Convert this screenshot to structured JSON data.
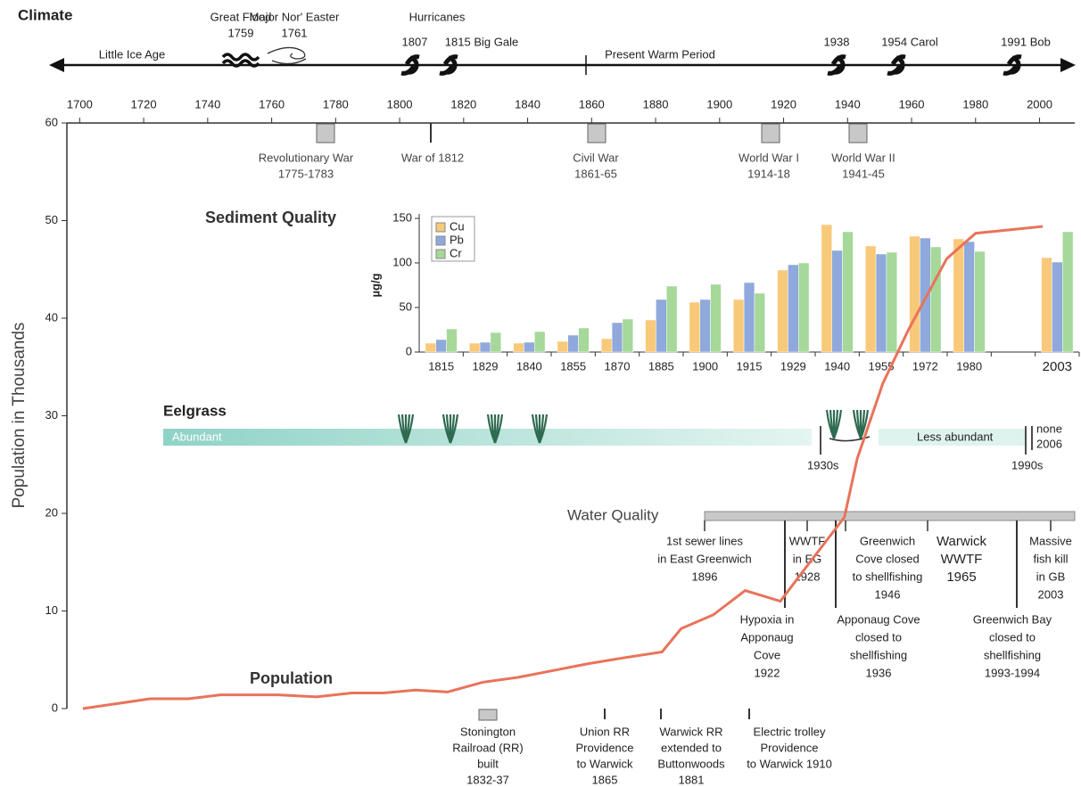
{
  "climate": {
    "title": "Climate",
    "periods": [
      "Little Ice Age",
      "Present Warm Period"
    ],
    "header": "Hurricanes",
    "events": [
      [
        "Great Flood",
        "1759"
      ],
      [
        "Major Nor' Easter",
        "1761"
      ],
      [
        "1807"
      ],
      [
        "1815 Big Gale"
      ],
      [
        "1938"
      ],
      [
        "1954 Carol"
      ],
      [
        "1991 Bob"
      ]
    ]
  },
  "history_top": [
    [
      "Revolutionary War",
      "1775-1783"
    ],
    [
      "War of 1812"
    ],
    [
      "Civil War",
      "1861-65"
    ],
    [
      "World War I",
      "1914-18"
    ],
    [
      "World War II",
      "1941-45"
    ]
  ],
  "history_bottom": [
    [
      "Stonington",
      "Railroad (RR)",
      "built",
      "1832-37"
    ],
    [
      "Union RR",
      "Providence",
      "to Warwick",
      "1865"
    ],
    [
      "Warwick RR",
      "extended to",
      "Buttonwoods",
      "1881"
    ],
    [
      "Electric trolley",
      "Providence",
      "to Warwick 1910"
    ]
  ],
  "eelgrass": {
    "title": "Eelgrass",
    "start": "Abundant",
    "end": "Less abundant",
    "marks": [
      "1930s",
      "1990s"
    ],
    "none": [
      "none",
      "2006"
    ]
  },
  "water_quality": {
    "title": "Water Quality",
    "above": [
      [
        "1st sewer lines",
        "in East Greenwich",
        "1896"
      ],
      [
        "WWTF",
        "in EG",
        "1928"
      ],
      [
        "Greenwich",
        "Cove closed",
        "to shellfishing",
        "1946"
      ],
      [
        "Warwick",
        "WWTF",
        "1965"
      ],
      [
        "Massive",
        "fish kill",
        "in GB",
        "2003"
      ]
    ],
    "below": [
      [
        "Hypoxia in",
        "Apponaug",
        "Cove",
        "1922"
      ],
      [
        "Apponaug Cove",
        "closed to",
        "shellfishing",
        "1936"
      ],
      [
        "Greenwich Bay",
        "closed to",
        "shellfishing",
        "1993-1994"
      ]
    ]
  },
  "chart_data": [
    {
      "type": "line",
      "title": "Population",
      "y_label": "Population in Thousands",
      "color": "#e8735a",
      "x": [
        1701,
        1722,
        1734,
        1744,
        1762,
        1774,
        1785,
        1795,
        1805,
        1815,
        1826,
        1837,
        1848,
        1859,
        1870,
        1882,
        1888,
        1898,
        1908,
        1919,
        1928,
        1939,
        1943,
        1951,
        1959,
        1971,
        1980,
        2001
      ],
      "values": [
        0,
        1.0,
        1.0,
        1.4,
        1.4,
        1.2,
        1.6,
        1.6,
        1.9,
        1.7,
        2.7,
        3.2,
        3.9,
        4.6,
        5.2,
        5.8,
        8.2,
        9.6,
        12.1,
        11.0,
        14.9,
        19.6,
        25.6,
        33.3,
        38.8,
        46.1,
        48.7,
        49.4
      ],
      "xlim": [
        1696,
        2011
      ],
      "xticks": [
        1700,
        1720,
        1740,
        1760,
        1780,
        1800,
        1820,
        1840,
        1860,
        1880,
        1900,
        1920,
        1940,
        1960,
        1980,
        2000
      ],
      "ylim": [
        0,
        60
      ],
      "yticks": [
        0,
        10,
        20,
        30,
        40,
        50,
        60
      ]
    },
    {
      "type": "bar",
      "title": "Sediment Quality",
      "y_label": "µg/g",
      "categories": [
        "1815",
        "1829",
        "1840",
        "1855",
        "1870",
        "1885",
        "1900",
        "1915",
        "1929",
        "1940",
        "1955",
        "1972",
        "1980",
        null,
        "2003"
      ],
      "series": [
        {
          "name": "Cu",
          "color": "#f9c97a",
          "values": [
            10,
            10,
            10,
            12,
            15,
            36,
            56,
            59,
            92,
            143,
            119,
            130,
            127,
            null,
            106
          ]
        },
        {
          "name": "Pb",
          "color": "#8fa9dc",
          "values": [
            14,
            11,
            11,
            19,
            33,
            59,
            59,
            78,
            98,
            114,
            110,
            128,
            124,
            null,
            101
          ]
        },
        {
          "name": "Cr",
          "color": "#a6d89a",
          "values": [
            26,
            22,
            23,
            27,
            37,
            74,
            76,
            66,
            100,
            135,
            112,
            118,
            113,
            null,
            135
          ]
        }
      ],
      "ylim": [
        0,
        150
      ],
      "yticks": [
        0,
        50,
        100,
        150
      ]
    }
  ]
}
